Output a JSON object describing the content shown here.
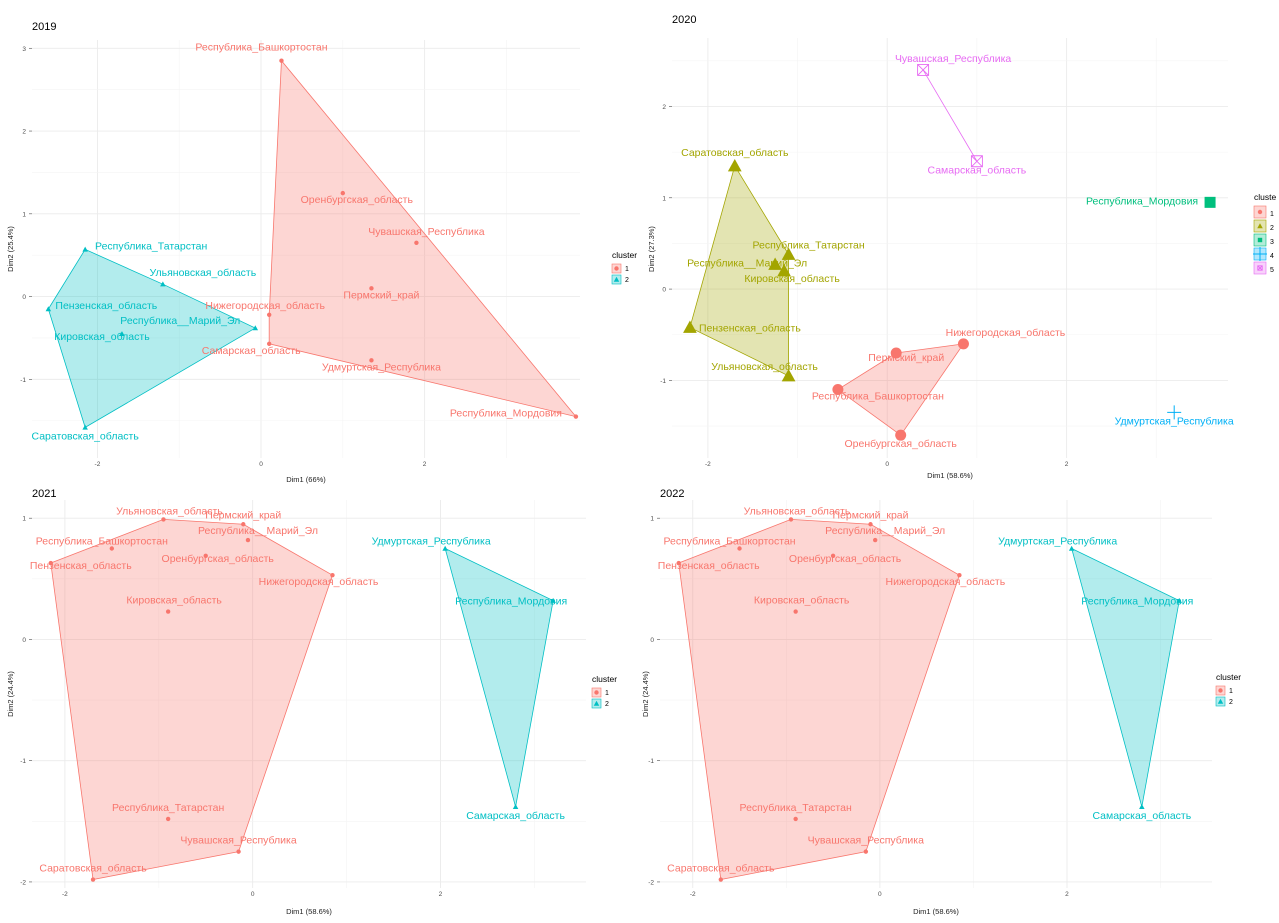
{
  "chart_data": [
    {
      "type": "scatter",
      "title": "2019",
      "xlabel": "Dim1 (66%)",
      "ylabel": "Dim2 (25.4%)",
      "xlim": [
        -2.8,
        3.9
      ],
      "ylim": [
        -1.95,
        3.1
      ],
      "xticks": [
        -2,
        0,
        2
      ],
      "yticks": [
        -1,
        0,
        1,
        2,
        3
      ],
      "xtick_labels": [
        "-2",
        "0",
        "2"
      ],
      "ytick_labels": [
        "-1",
        "0",
        "1",
        "2",
        "3"
      ],
      "legend": {
        "title": "cluster",
        "entries": [
          "1",
          "2"
        ],
        "position": "right"
      },
      "clusters": [
        {
          "id": "1",
          "color": "#F8766D",
          "hull": true,
          "shape": "circle"
        },
        {
          "id": "2",
          "color": "#00BFC4",
          "hull": true,
          "shape": "triangle"
        }
      ],
      "points": [
        {
          "label": "Республика_Башкортостан",
          "x": 0.25,
          "y": 2.85,
          "cluster": "1"
        },
        {
          "label": "Оренбургская_область",
          "x": 1.0,
          "y": 1.25,
          "cluster": "1"
        },
        {
          "label": "Чувашская_Республика",
          "x": 1.9,
          "y": 0.65,
          "cluster": "1"
        },
        {
          "label": "Пермский_край",
          "x": 1.35,
          "y": 0.1,
          "cluster": "1"
        },
        {
          "label": "Нижегородская_область",
          "x": 0.1,
          "y": -0.22,
          "cluster": "1"
        },
        {
          "label": "Самарская_область",
          "x": 0.1,
          "y": -0.57,
          "cluster": "1"
        },
        {
          "label": "Удмуртская_Республика",
          "x": 1.35,
          "y": -0.77,
          "cluster": "1"
        },
        {
          "label": "Республика_Мордовия",
          "x": 3.85,
          "y": -1.45,
          "cluster": "1"
        },
        {
          "label": "Республика_Татарстан",
          "x": -2.15,
          "y": 0.57,
          "cluster": "2"
        },
        {
          "label": "Ульяновская_область",
          "x": -1.2,
          "y": 0.15,
          "cluster": "2"
        },
        {
          "label": "Пензенская_область",
          "x": -2.6,
          "y": -0.15,
          "cluster": "2"
        },
        {
          "label": "Республика__Марий_Эл",
          "x": -0.07,
          "y": -0.38,
          "cluster": "2"
        },
        {
          "label": "Кировская_область",
          "x": -1.7,
          "y": -0.45,
          "cluster": "2"
        },
        {
          "label": "Саратовская_область",
          "x": -2.15,
          "y": -1.58,
          "cluster": "2"
        }
      ]
    },
    {
      "type": "scatter",
      "title": "2020",
      "xlabel": "Dim1 (58.6%)",
      "ylabel": "Dim2 (27.3%)",
      "xlim": [
        -2.4,
        3.8
      ],
      "ylim": [
        -1.85,
        2.75
      ],
      "xticks": [
        -2,
        0,
        2
      ],
      "yticks": [
        -1,
        0,
        1,
        2
      ],
      "xtick_labels": [
        "-2",
        "0",
        "2"
      ],
      "ytick_labels": [
        "-1",
        "0",
        "1",
        "2"
      ],
      "legend": {
        "title": "cluste",
        "entries": [
          "1",
          "2",
          "3",
          "4",
          "5"
        ],
        "position": "right"
      },
      "clusters": [
        {
          "id": "1",
          "color": "#F8766D",
          "hull": true,
          "shape": "circle"
        },
        {
          "id": "2",
          "color": "#A3A500",
          "hull": true,
          "shape": "triangle"
        },
        {
          "id": "3",
          "color": "#00BF7D",
          "hull": false,
          "shape": "square"
        },
        {
          "id": "4",
          "color": "#00B0F6",
          "hull": false,
          "shape": "plus"
        },
        {
          "id": "5",
          "color": "#E76BF3",
          "hull": true,
          "shape": "boxx"
        }
      ],
      "points": [
        {
          "label": "Чувашская_Республика",
          "x": 0.4,
          "y": 2.4,
          "cluster": "5"
        },
        {
          "label": "Самарская_область",
          "x": 1.0,
          "y": 1.4,
          "cluster": "5"
        },
        {
          "label": "Республика_Мордовия",
          "x": 3.6,
          "y": 0.95,
          "cluster": "3"
        },
        {
          "label": "Саратовская_область",
          "x": -1.7,
          "y": 1.35,
          "cluster": "2"
        },
        {
          "label": "Республика_Татарстан",
          "x": -1.1,
          "y": 0.38,
          "cluster": "2"
        },
        {
          "label": "Республика__Марий_Эл",
          "x": -1.25,
          "y": 0.27,
          "cluster": "2"
        },
        {
          "label": "Кировская_область",
          "x": -1.15,
          "y": 0.2,
          "cluster": "2"
        },
        {
          "label": "Пензенская_область",
          "x": -2.2,
          "y": -0.42,
          "cluster": "2"
        },
        {
          "label": "Ульяновская_область",
          "x": -1.1,
          "y": -0.95,
          "cluster": "2"
        },
        {
          "label": "Нижегородская_область",
          "x": 0.85,
          "y": -0.6,
          "cluster": "1"
        },
        {
          "label": "Пермский_край",
          "x": 0.1,
          "y": -0.7,
          "cluster": "1"
        },
        {
          "label": "Республика_Башкортостан",
          "x": -0.55,
          "y": -1.1,
          "cluster": "1"
        },
        {
          "label": "Оренбургская_область",
          "x": 0.15,
          "y": -1.6,
          "cluster": "1"
        },
        {
          "label": "Удмуртская_Республика",
          "x": 3.2,
          "y": -1.35,
          "cluster": "4"
        }
      ]
    },
    {
      "type": "scatter",
      "title": "2021",
      "xlabel": "Dim1 (58.6%)",
      "ylabel": "Dim2 (24.4%)",
      "xlim": [
        -2.35,
        3.55
      ],
      "ylim": [
        -2.05,
        1.15
      ],
      "xticks": [
        -2,
        0,
        2
      ],
      "yticks": [
        -2,
        -1,
        0,
        1
      ],
      "xtick_labels": [
        "-2",
        "0",
        "2"
      ],
      "ytick_labels": [
        "-2",
        "-1",
        "0",
        "1"
      ],
      "legend": {
        "title": "cluster",
        "entries": [
          "1",
          "2"
        ],
        "position": "right"
      },
      "clusters": [
        {
          "id": "1",
          "color": "#F8766D",
          "hull": true,
          "shape": "circle"
        },
        {
          "id": "2",
          "color": "#00BFC4",
          "hull": true,
          "shape": "triangle"
        }
      ],
      "points": [
        {
          "label": "Ульяновская_область",
          "x": -0.95,
          "y": 0.99,
          "cluster": "1"
        },
        {
          "label": "Пермский_край",
          "x": -0.1,
          "y": 0.95,
          "cluster": "1"
        },
        {
          "label": "Республика__Марий_Эл",
          "x": -0.05,
          "y": 0.82,
          "cluster": "1"
        },
        {
          "label": "Республика_Башкортостан",
          "x": -1.5,
          "y": 0.75,
          "cluster": "1"
        },
        {
          "label": "Пензенская_область",
          "x": -2.15,
          "y": 0.63,
          "cluster": "1"
        },
        {
          "label": "Оренбургская_область",
          "x": -0.5,
          "y": 0.69,
          "cluster": "1"
        },
        {
          "label": "Нижегородская_область",
          "x": 0.85,
          "y": 0.53,
          "cluster": "1"
        },
        {
          "label": "Кировская_область",
          "x": -0.9,
          "y": 0.23,
          "cluster": "1"
        },
        {
          "label": "Республика_Татарстан",
          "x": -0.9,
          "y": -1.48,
          "cluster": "1"
        },
        {
          "label": "Чувашская_Республика",
          "x": -0.15,
          "y": -1.75,
          "cluster": "1"
        },
        {
          "label": "Саратовская_область",
          "x": -1.7,
          "y": -1.98,
          "cluster": "1"
        },
        {
          "label": "Удмуртская_Республика",
          "x": 2.05,
          "y": 0.75,
          "cluster": "2"
        },
        {
          "label": "Республика_Мордовия",
          "x": 3.2,
          "y": 0.32,
          "cluster": "2"
        },
        {
          "label": "Самарская_область",
          "x": 2.8,
          "y": -1.38,
          "cluster": "2"
        }
      ]
    },
    {
      "type": "scatter",
      "title": "2022",
      "xlabel": "Dim1 (58.6%)",
      "ylabel": "Dim2 (24.4%)",
      "xlim": [
        -2.35,
        3.55
      ],
      "ylim": [
        -2.05,
        1.15
      ],
      "xticks": [
        -2,
        0,
        2
      ],
      "yticks": [
        -2,
        -1,
        0,
        1
      ],
      "xtick_labels": [
        "-2",
        "0",
        "2"
      ],
      "ytick_labels": [
        "-2",
        "-1",
        "0",
        "1"
      ],
      "legend": {
        "title": "cluster",
        "entries": [
          "1",
          "2"
        ],
        "position": "right"
      },
      "clusters": [
        {
          "id": "1",
          "color": "#F8766D",
          "hull": true,
          "shape": "circle"
        },
        {
          "id": "2",
          "color": "#00BFC4",
          "hull": true,
          "shape": "triangle"
        }
      ],
      "points": [
        {
          "label": "Ульяновская_область",
          "x": -0.95,
          "y": 0.99,
          "cluster": "1"
        },
        {
          "label": "Пермский_край",
          "x": -0.1,
          "y": 0.95,
          "cluster": "1"
        },
        {
          "label": "Республика__Марий_Эл",
          "x": -0.05,
          "y": 0.82,
          "cluster": "1"
        },
        {
          "label": "Республика_Башкортостан",
          "x": -1.5,
          "y": 0.75,
          "cluster": "1"
        },
        {
          "label": "Пензенская_область",
          "x": -2.15,
          "y": 0.63,
          "cluster": "1"
        },
        {
          "label": "Оренбургская_область",
          "x": -0.5,
          "y": 0.69,
          "cluster": "1"
        },
        {
          "label": "Нижегородская_область",
          "x": 0.85,
          "y": 0.53,
          "cluster": "1"
        },
        {
          "label": "Кировская_область",
          "x": -0.9,
          "y": 0.23,
          "cluster": "1"
        },
        {
          "label": "Республика_Татарстан",
          "x": -0.9,
          "y": -1.48,
          "cluster": "1"
        },
        {
          "label": "Чувашская_Республика",
          "x": -0.15,
          "y": -1.75,
          "cluster": "1"
        },
        {
          "label": "Саратовская_область",
          "x": -1.7,
          "y": -1.98,
          "cluster": "1"
        },
        {
          "label": "Удмуртская_Республика",
          "x": 2.05,
          "y": 0.75,
          "cluster": "2"
        },
        {
          "label": "Республика_Мордовия",
          "x": 3.2,
          "y": 0.32,
          "cluster": "2"
        },
        {
          "label": "Самарская_область",
          "x": 2.8,
          "y": -1.38,
          "cluster": "2"
        }
      ]
    }
  ]
}
